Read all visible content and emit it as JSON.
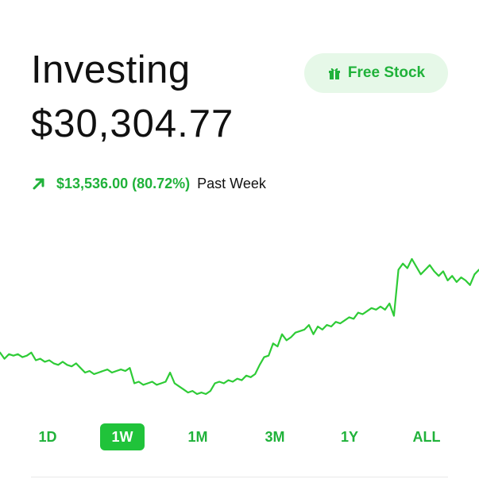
{
  "header": {
    "title": "Investing",
    "balance": "$30,304.77"
  },
  "promo": {
    "label": "Free Stock",
    "icon": "gift-icon"
  },
  "change": {
    "icon": "arrow-up-right-icon",
    "value": "$13,536.00 (80.72%)",
    "period": "Past Week",
    "color": "#20b23a"
  },
  "chart_data": {
    "type": "line",
    "series": [
      {
        "values": [
          0.42,
          0.46,
          0.43,
          0.44,
          0.43,
          0.45,
          0.44,
          0.42,
          0.47,
          0.46,
          0.48,
          0.47,
          0.49,
          0.5,
          0.48,
          0.5,
          0.51,
          0.49,
          0.52,
          0.55,
          0.54,
          0.56,
          0.55,
          0.54,
          0.53,
          0.55,
          0.54,
          0.53,
          0.54,
          0.52,
          0.62,
          0.61,
          0.63,
          0.62,
          0.61,
          0.63,
          0.62,
          0.61,
          0.55,
          0.62,
          0.64,
          0.66,
          0.68,
          0.67,
          0.69,
          0.68,
          0.69,
          0.67,
          0.62,
          0.61,
          0.62,
          0.6,
          0.61,
          0.59,
          0.6,
          0.57,
          0.58,
          0.56,
          0.5,
          0.45,
          0.44,
          0.36,
          0.38,
          0.3,
          0.34,
          0.32,
          0.29,
          0.28,
          0.27,
          0.24,
          0.3,
          0.25,
          0.27,
          0.24,
          0.25,
          0.22,
          0.23,
          0.21,
          0.19,
          0.2,
          0.16,
          0.17,
          0.15,
          0.13,
          0.14,
          0.12,
          0.14,
          0.1,
          0.18,
          -0.12,
          -0.16,
          -0.13,
          -0.19,
          -0.14,
          -0.09,
          -0.12,
          -0.15,
          -0.11,
          -0.08,
          -0.11,
          -0.05,
          -0.08,
          -0.04,
          -0.07,
          -0.05,
          -0.02,
          -0.09,
          -0.12
        ]
      }
    ],
    "color": "#2ecb36",
    "grid": false
  },
  "range_tabs": {
    "items": [
      "1D",
      "1W",
      "1M",
      "3M",
      "1Y",
      "ALL"
    ],
    "active": "1W"
  }
}
